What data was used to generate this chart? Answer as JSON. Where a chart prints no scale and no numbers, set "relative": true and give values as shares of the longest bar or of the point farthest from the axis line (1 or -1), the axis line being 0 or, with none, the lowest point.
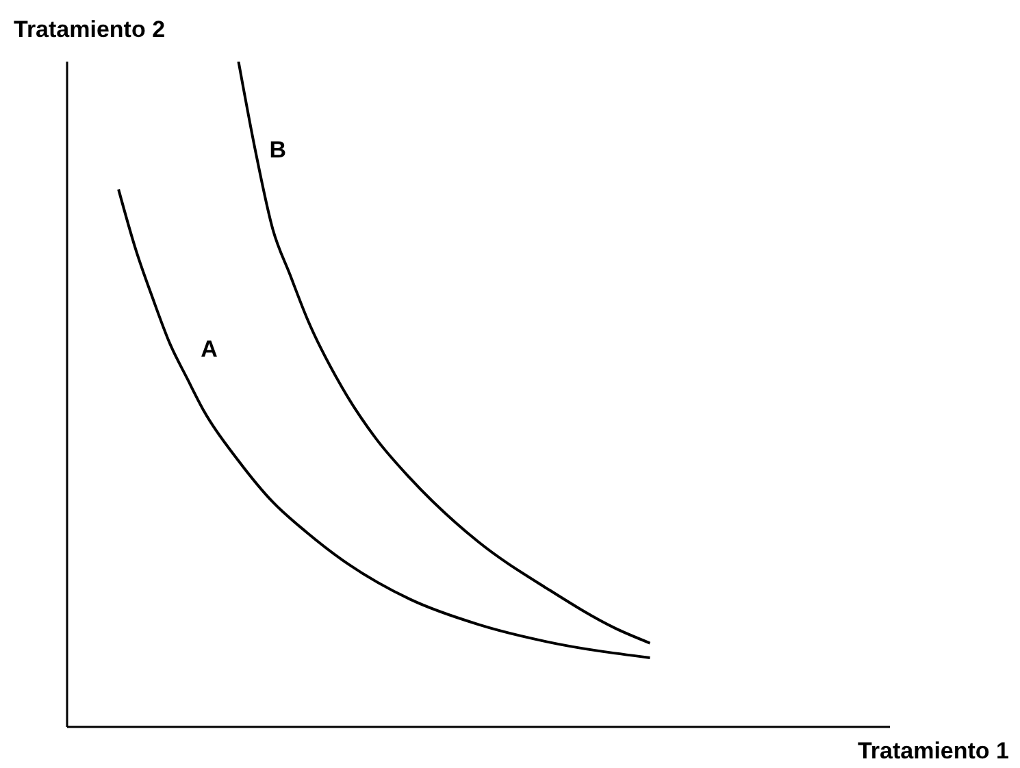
{
  "chart_data": {
    "type": "line",
    "relative": true,
    "xlabel": "Tratamiento 1",
    "ylabel": "Tratamiento 2",
    "legend": false,
    "grid": false,
    "marker": "none",
    "line_style": "solid",
    "categories": [
      null,
      null,
      null,
      null,
      null,
      null,
      null,
      null,
      null,
      null,
      null,
      null,
      null,
      null,
      null,
      null,
      null,
      null,
      null,
      null,
      null,
      null,
      null,
      null,
      null,
      null,
      null,
      null,
      null,
      null,
      null,
      null,
      null,
      null,
      null,
      null,
      null,
      null,
      null,
      null,
      null,
      null,
      null,
      null,
      null,
      null,
      null,
      null,
      null
    ],
    "series": [
      {
        "name": "A",
        "color": "#000000",
        "values": [
          null,
          null,
          null,
          0.808,
          0.718,
          0.644,
          0.576,
          0.524,
          0.474,
          null,
          0.4,
          null,
          0.338,
          null,
          0.292,
          null,
          0.252,
          null,
          null,
          null,
          0.192,
          null,
          null,
          null,
          0.154,
          null,
          null,
          null,
          0.128,
          null,
          null,
          null,
          null,
          null,
          0.104,
          null,
          null,
          null,
          null,
          null,
          null,
          null,
          null,
          null,
          null,
          null,
          null,
          null,
          null
        ]
      },
      {
        "name": "B",
        "color": "#000000",
        "values": [
          null,
          null,
          null,
          null,
          null,
          null,
          null,
          null,
          null,
          null,
          1.0,
          0.864,
          0.748,
          0.68,
          0.614,
          null,
          0.512,
          null,
          0.434,
          null,
          0.374,
          null,
          null,
          null,
          0.278,
          null,
          null,
          null,
          0.208,
          null,
          null,
          null,
          0.148,
          null,
          0.126,
          null,
          null,
          null,
          null,
          null,
          null,
          null,
          null,
          null,
          null,
          null,
          null,
          null,
          null
        ]
      }
    ]
  }
}
